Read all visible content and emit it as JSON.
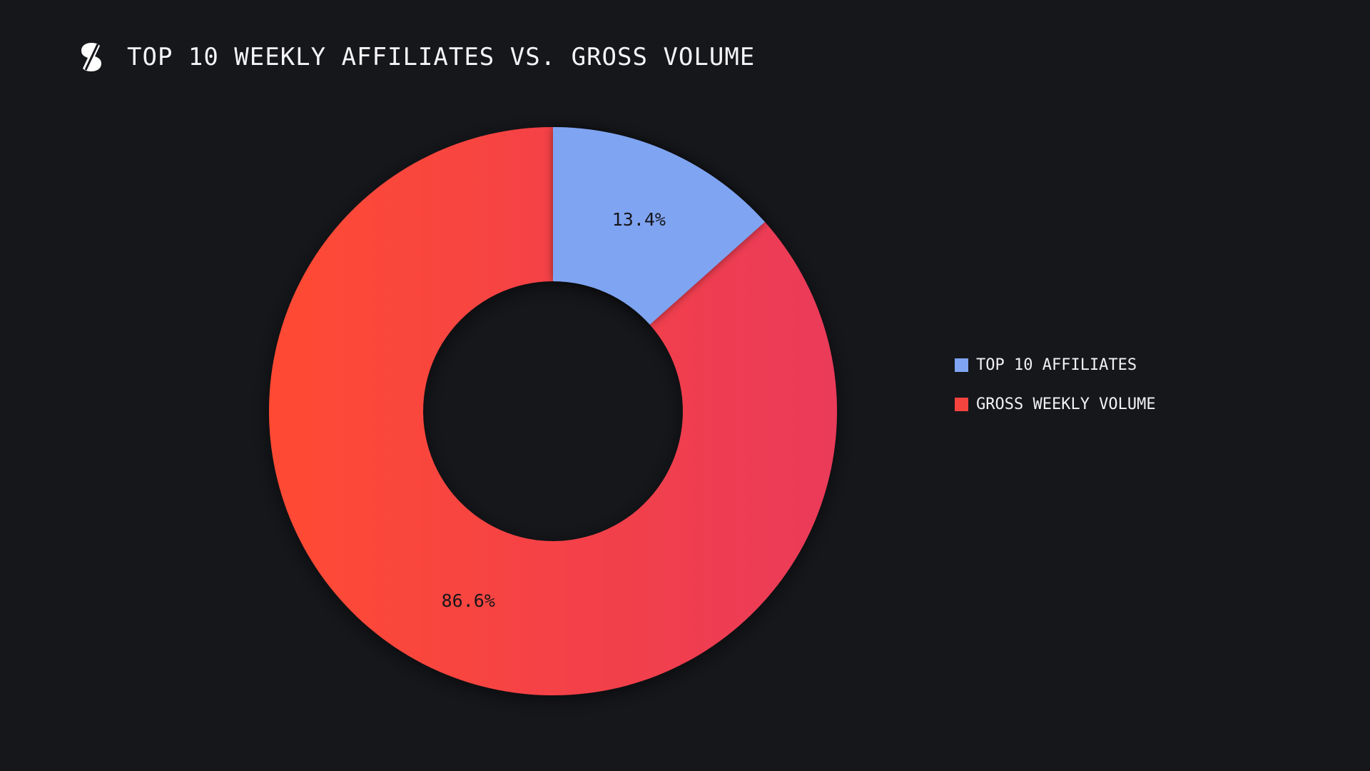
{
  "header": {
    "title": "TOP 10 WEEKLY AFFILIATES VS. GROSS VOLUME",
    "logo_icon": "brand-s-icon"
  },
  "colors": {
    "background": "#16171b",
    "top10": "#7fa4f1",
    "gross_light": "#ff4a33",
    "gross_dark": "#ea3a5a"
  },
  "chart_data": {
    "type": "pie",
    "style": "donut",
    "title": "TOP 10 WEEKLY AFFILIATES VS. GROSS VOLUME",
    "categories": [
      "TOP 10 AFFILIATES",
      "GROSS WEEKLY VOLUME"
    ],
    "values": [
      13.4,
      86.6
    ],
    "data_labels": [
      "13.4%",
      "86.6%"
    ],
    "legend": "right",
    "colors": [
      "#7fa4f1",
      "#f24448"
    ]
  },
  "legend": {
    "items": [
      {
        "label": "TOP 10 AFFILIATES",
        "color": "#7fa4f1"
      },
      {
        "label": "GROSS WEEKLY VOLUME",
        "color": "#f5433d"
      }
    ]
  }
}
